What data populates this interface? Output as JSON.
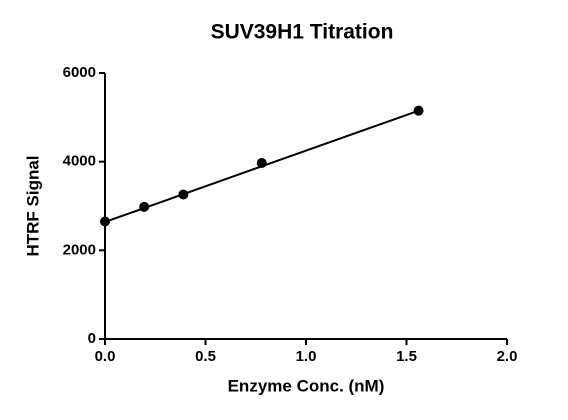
{
  "chart_data": {
    "type": "scatter",
    "title": "SUV39H1 Titration",
    "x_label": "Enzyme Conc. (nM)",
    "y_label": "HTRF Signal",
    "x": [
      0,
      0.195,
      0.39,
      0.78,
      1.56
    ],
    "values": [
      2650,
      2980,
      3260,
      3970,
      5150
    ],
    "color": "#000000",
    "fit_line": {
      "x": [
        0,
        1.56
      ],
      "values": [
        2640,
        5150
      ]
    },
    "xlim": [
      0,
      2.0
    ],
    "xticks": [
      {
        "value": 0,
        "label": "0.0"
      },
      {
        "value": 0.5,
        "label": "0.5"
      },
      {
        "value": 1.0,
        "label": "1.0"
      },
      {
        "value": 1.5,
        "label": "1.5"
      },
      {
        "value": 2.0,
        "label": "2.0"
      }
    ],
    "ylim": [
      0,
      6000
    ],
    "yticks": [
      0,
      2000,
      4000,
      6000
    ]
  }
}
